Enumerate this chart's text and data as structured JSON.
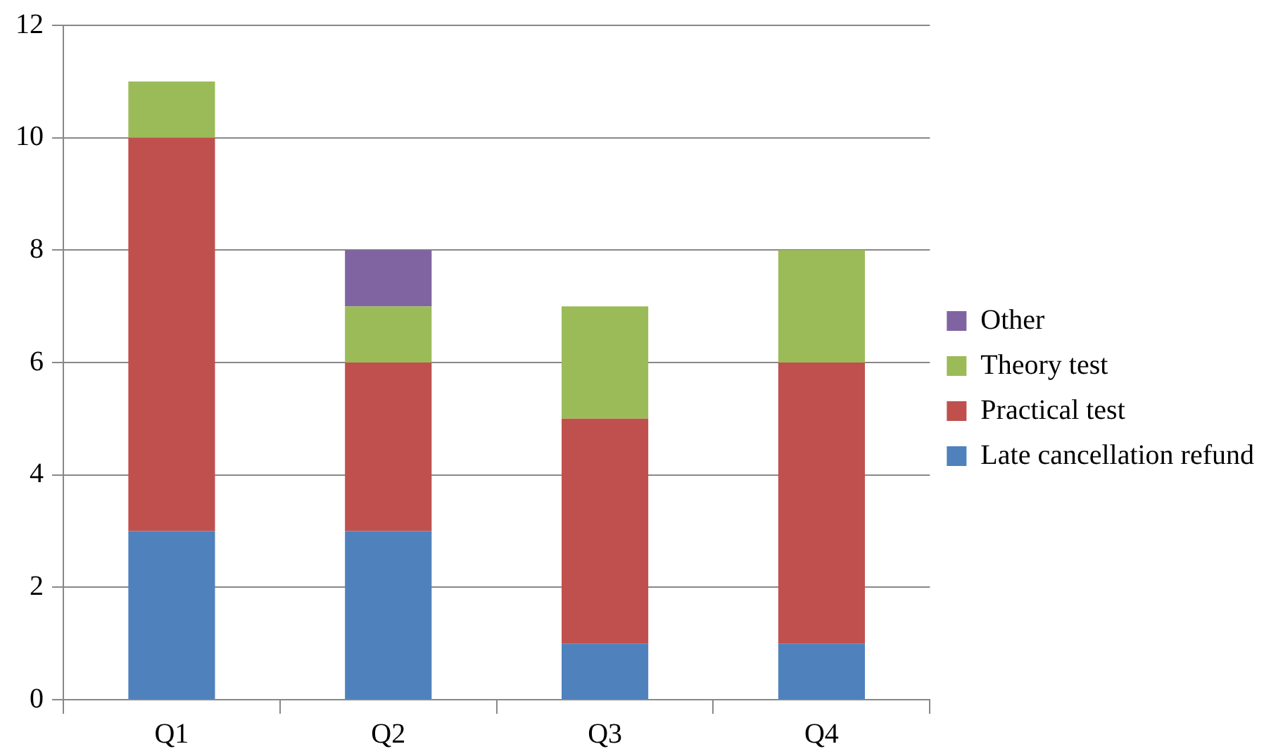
{
  "chart_data": {
    "type": "bar",
    "stacked": true,
    "categories": [
      "Q1",
      "Q2",
      "Q3",
      "Q4"
    ],
    "series": [
      {
        "name": "Late cancellation refund",
        "color": "#4f81bd",
        "values": [
          3,
          3,
          1,
          1
        ]
      },
      {
        "name": "Practical test",
        "color": "#c0504d",
        "values": [
          7,
          3,
          4,
          5
        ]
      },
      {
        "name": "Theory test",
        "color": "#9bbb59",
        "values": [
          1,
          1,
          2,
          2
        ]
      },
      {
        "name": "Other",
        "color": "#8064a2",
        "values": [
          0,
          1,
          0,
          0
        ]
      }
    ],
    "ylim": [
      0,
      12
    ],
    "yticks": [
      0,
      2,
      4,
      6,
      8,
      10,
      12
    ],
    "grid": "y",
    "legend": "right"
  }
}
